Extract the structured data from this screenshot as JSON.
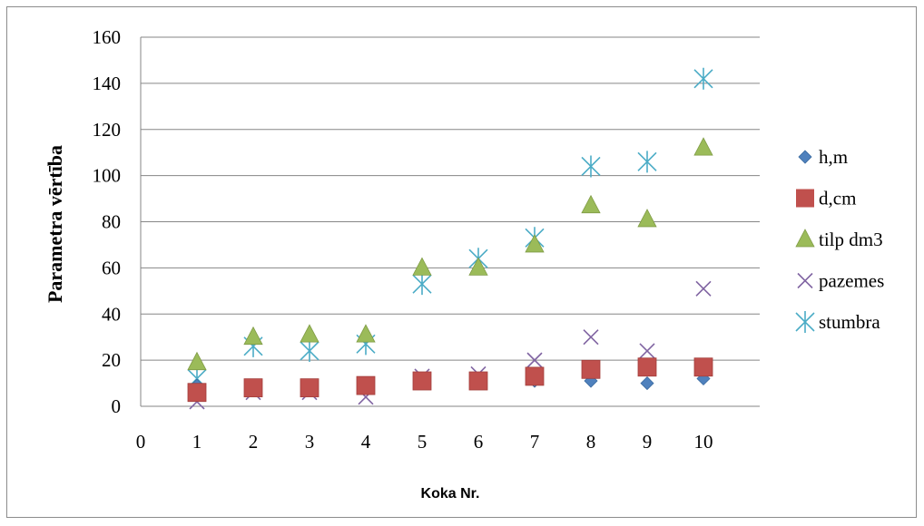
{
  "chart_data": {
    "type": "scatter",
    "xlabel": "Koka Nr.",
    "ylabel": "Parametra vērtība",
    "xlim": [
      0,
      11
    ],
    "ylim": [
      0,
      160
    ],
    "xticks": [
      0,
      1,
      2,
      3,
      4,
      5,
      6,
      7,
      8,
      9,
      10
    ],
    "yticks": [
      0,
      20,
      40,
      60,
      80,
      100,
      120,
      140,
      160
    ],
    "grid": "horizontal",
    "legend_position": "right",
    "x": [
      1,
      2,
      3,
      4,
      5,
      6,
      7,
      8,
      9,
      10
    ],
    "series": [
      {
        "name": "h,m",
        "marker": "diamond",
        "color": "#4f81bd",
        "values": [
          9,
          7,
          9,
          9,
          11,
          11,
          11,
          11,
          10,
          12
        ]
      },
      {
        "name": "d,cm",
        "marker": "square",
        "color": "#c0504d",
        "values": [
          6,
          8,
          8,
          9,
          11,
          11,
          13,
          16,
          17,
          17
        ]
      },
      {
        "name": "tilp dm3",
        "marker": "triangle",
        "color": "#9bbb59",
        "values": [
          19,
          30,
          31,
          31,
          60,
          60,
          70,
          87,
          81,
          112
        ]
      },
      {
        "name": "pazemes",
        "marker": "x",
        "color": "#8064a2",
        "values": [
          2,
          6,
          6,
          4,
          13,
          14,
          20,
          30,
          24,
          51
        ]
      },
      {
        "name": "stumbra",
        "marker": "star",
        "color": "#4bacc6",
        "values": [
          12,
          26,
          24,
          27,
          53,
          64,
          73,
          104,
          106,
          142
        ]
      }
    ]
  }
}
